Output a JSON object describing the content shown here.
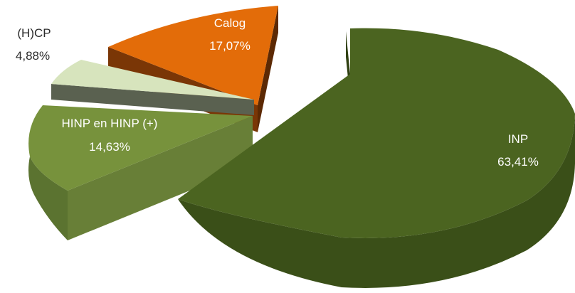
{
  "chart_data": {
    "type": "pie",
    "title": "",
    "slices": [
      {
        "label": "INP",
        "value_text": "63,41%",
        "value": 63.41,
        "color": "#4b6420",
        "side": "#3a4f18",
        "label_color": "#ffffff"
      },
      {
        "label": "HINP en HINP (+)",
        "value_text": "14,63%",
        "value": 14.63,
        "color": "#77923c",
        "side": "#5c722c",
        "label_color": "#ffffff"
      },
      {
        "label": "(H)CP",
        "value_text": "4,88%",
        "value": 4.88,
        "color": "#d7e4bd",
        "side": "#59604f",
        "label_color": "#2b2b2b"
      },
      {
        "label": "Calog",
        "value_text": "17,07%",
        "value": 17.07,
        "color": "#e36c09",
        "side": "#7f3a07",
        "label_color": "#ffffff"
      }
    ]
  }
}
